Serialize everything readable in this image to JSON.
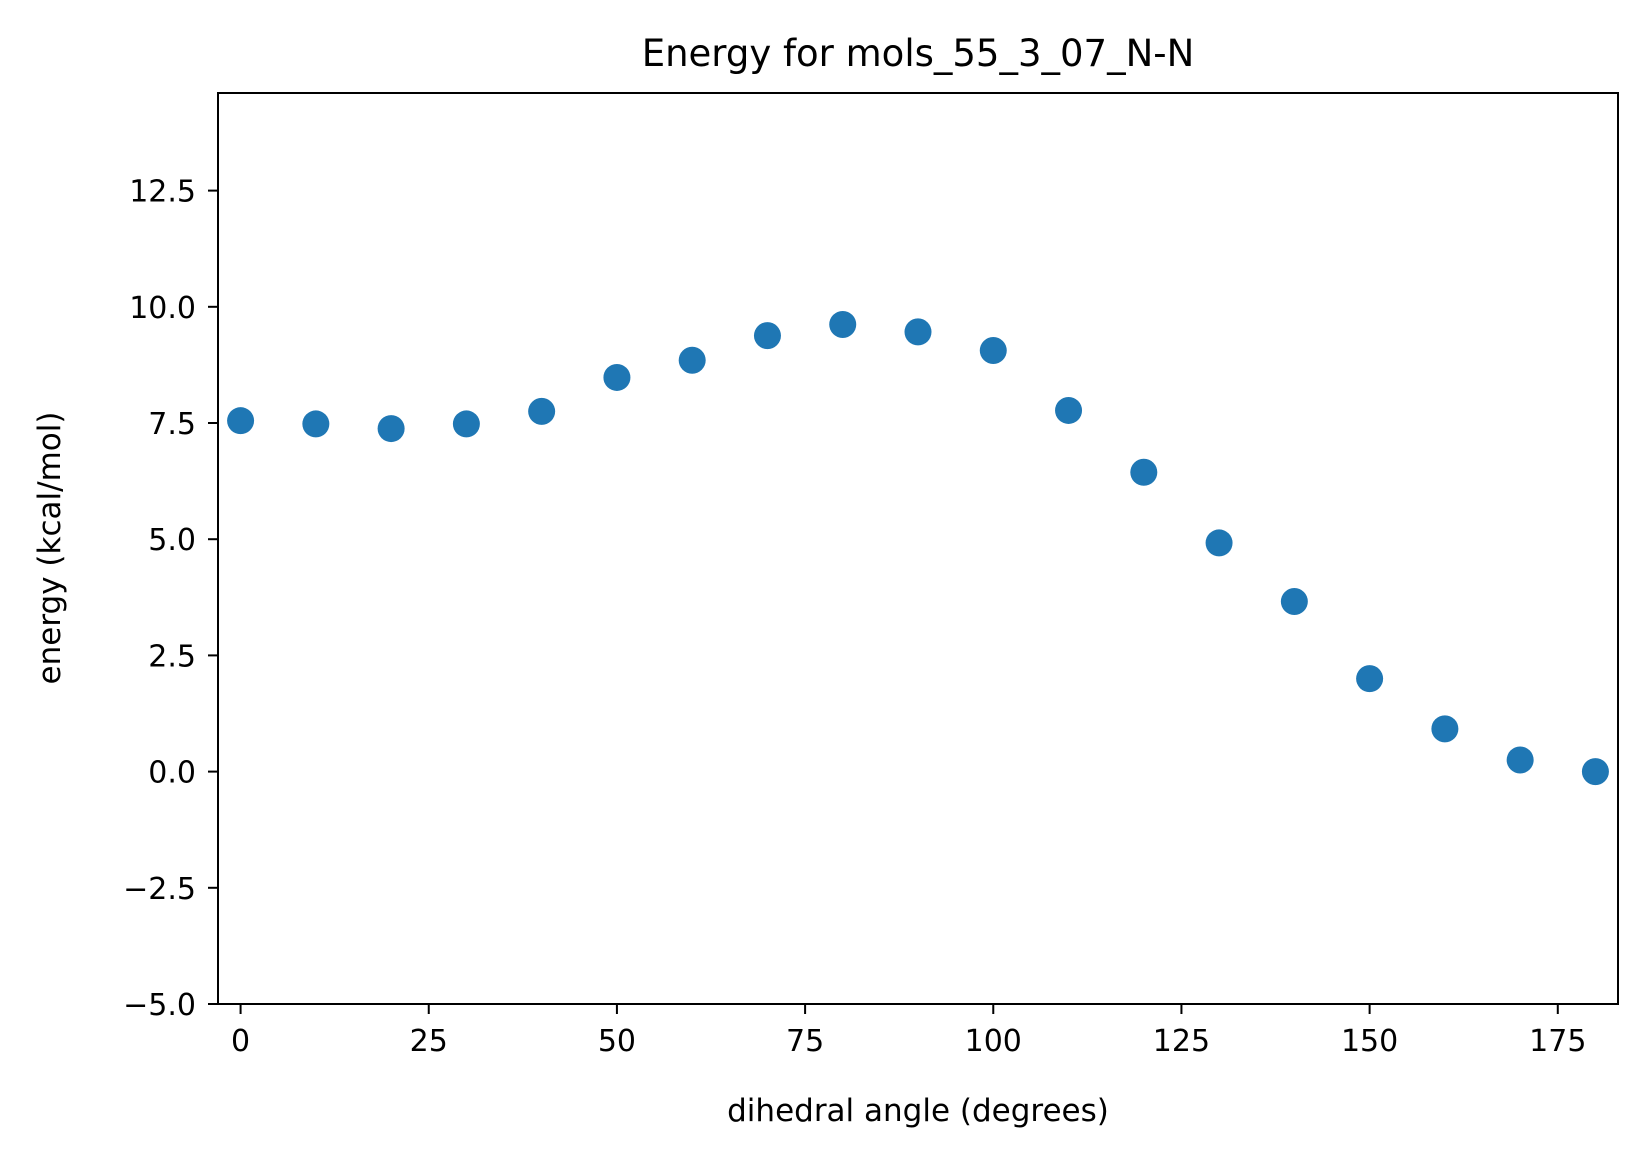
{
  "chart_data": {
    "type": "scatter",
    "title": "Energy for mols_55_3_07_N-N",
    "xlabel": "dihedral angle (degrees)",
    "ylabel": "energy (kcal/mol)",
    "xlim": [
      -3,
      183
    ],
    "ylim": [
      -5,
      14.6
    ],
    "xticks": [
      0,
      25,
      50,
      75,
      100,
      125,
      150,
      175
    ],
    "xtick_labels": [
      "0",
      "25",
      "50",
      "75",
      "100",
      "125",
      "150",
      "175"
    ],
    "yticks": [
      -5,
      -2.5,
      0,
      2.5,
      5,
      7.5,
      10,
      12.5
    ],
    "ytick_labels": [
      "−5.0",
      "−2.5",
      "0.0",
      "2.5",
      "5.0",
      "7.5",
      "10.0",
      "12.5"
    ],
    "grid": false,
    "legend": "none",
    "series": [
      {
        "color": "#1f77b4",
        "x": [
          0,
          10,
          20,
          30,
          40,
          50,
          60,
          70,
          80,
          90,
          100,
          110,
          120,
          130,
          140,
          150,
          160,
          170,
          180
        ],
        "y": [
          7.55,
          7.48,
          7.38,
          7.48,
          7.75,
          8.48,
          8.85,
          9.38,
          9.62,
          9.46,
          9.06,
          7.77,
          6.44,
          4.92,
          3.66,
          2.0,
          0.92,
          0.25,
          0.0
        ]
      }
    ]
  }
}
